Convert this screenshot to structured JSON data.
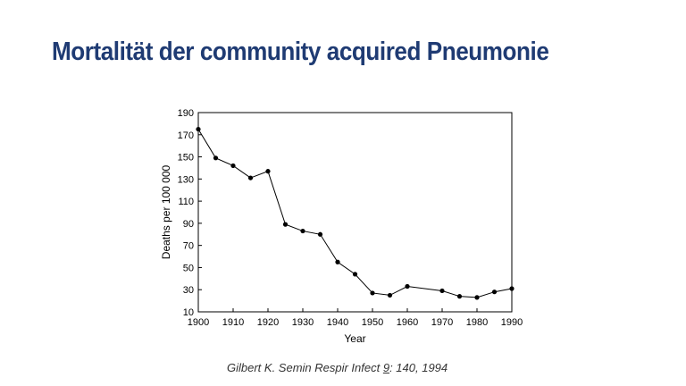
{
  "slide": {
    "title": "Mortalität der community acquired Pneumonie"
  },
  "citation": {
    "author_journal": "Gilbert K. Semin Respir Infect ",
    "volume": "9",
    "rest": ": 140, 1994"
  },
  "chart_data": {
    "type": "line",
    "title": "",
    "xlabel": "Year",
    "ylabel": "Deaths per 100 000",
    "xlim": [
      1900,
      1990
    ],
    "ylim": [
      10,
      190
    ],
    "xticks": [
      1900,
      1910,
      1920,
      1930,
      1940,
      1950,
      1960,
      1970,
      1980,
      1990
    ],
    "yticks": [
      10,
      30,
      50,
      70,
      90,
      110,
      130,
      150,
      170,
      190
    ],
    "grid": false,
    "markers": true,
    "series": [
      {
        "x": [
          1900,
          1905,
          1910,
          1915,
          1920,
          1925,
          1930,
          1935,
          1940,
          1945,
          1950,
          1955,
          1960,
          1970,
          1975,
          1980,
          1985,
          1990
        ],
        "y": [
          175,
          149,
          142,
          131,
          137,
          89,
          83,
          80,
          55,
          44,
          27,
          25,
          33,
          29,
          24,
          23,
          28,
          31
        ]
      }
    ],
    "colors": {
      "line": "#000000",
      "axes": "#000000"
    }
  }
}
